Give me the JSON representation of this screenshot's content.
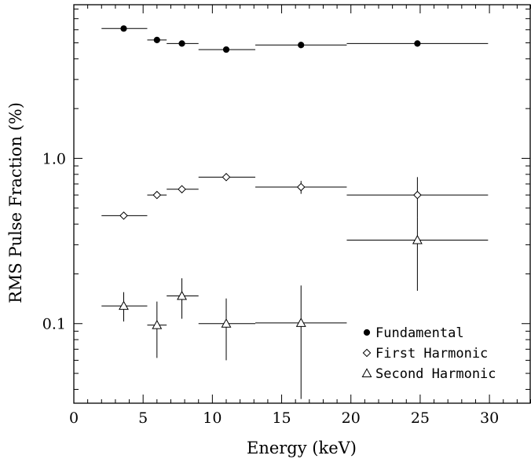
{
  "chart_data": {
    "type": "scatter",
    "title": "",
    "xlabel": "Energy (keV)",
    "ylabel": "RMS Pulse Fraction (%)",
    "xlim": [
      0,
      33
    ],
    "ylim": [
      0.033,
      8.5
    ],
    "yscale": "log",
    "xticks": [
      0,
      5,
      10,
      15,
      20,
      25,
      30
    ],
    "xtick_labels": [
      "0",
      "5",
      "10",
      "15",
      "20",
      "25",
      "30"
    ],
    "yticks": [
      0.1,
      1.0
    ],
    "ytick_labels": [
      "0.1",
      "1.0"
    ],
    "legend_position": "bottom-right",
    "series": [
      {
        "name": "Fundamental",
        "marker": "filled-circle",
        "points": [
          {
            "x": 3.6,
            "xlo": 2.0,
            "xhi": 5.3,
            "y": 6.1,
            "ylo": 6.1,
            "yhi": 6.1
          },
          {
            "x": 6.0,
            "xlo": 5.3,
            "xhi": 6.7,
            "y": 5.2,
            "ylo": 5.2,
            "yhi": 5.2
          },
          {
            "x": 7.8,
            "xlo": 6.7,
            "xhi": 9.0,
            "y": 4.95,
            "ylo": 4.95,
            "yhi": 4.95
          },
          {
            "x": 11.0,
            "xlo": 9.0,
            "xhi": 13.1,
            "y": 4.55,
            "ylo": 4.55,
            "yhi": 4.55
          },
          {
            "x": 16.4,
            "xlo": 13.1,
            "xhi": 19.7,
            "y": 4.85,
            "ylo": 4.85,
            "yhi": 4.85
          },
          {
            "x": 24.8,
            "xlo": 19.7,
            "xhi": 29.9,
            "y": 4.95,
            "ylo": 4.95,
            "yhi": 4.95
          }
        ]
      },
      {
        "name": "First Harmonic",
        "marker": "open-diamond",
        "points": [
          {
            "x": 3.6,
            "xlo": 2.0,
            "xhi": 5.3,
            "y": 0.45,
            "ylo": 0.44,
            "yhi": 0.46
          },
          {
            "x": 6.0,
            "xlo": 5.3,
            "xhi": 6.7,
            "y": 0.6,
            "ylo": 0.58,
            "yhi": 0.62
          },
          {
            "x": 7.8,
            "xlo": 6.7,
            "xhi": 9.0,
            "y": 0.65,
            "ylo": 0.63,
            "yhi": 0.67
          },
          {
            "x": 11.0,
            "xlo": 9.0,
            "xhi": 13.1,
            "y": 0.77,
            "ylo": 0.75,
            "yhi": 0.79
          },
          {
            "x": 16.4,
            "xlo": 13.1,
            "xhi": 19.7,
            "y": 0.67,
            "ylo": 0.61,
            "yhi": 0.73
          },
          {
            "x": 24.8,
            "xlo": 19.7,
            "xhi": 29.9,
            "y": 0.6,
            "ylo": 0.44,
            "yhi": 0.77
          }
        ]
      },
      {
        "name": "Second Harmonic",
        "marker": "open-triangle",
        "points": [
          {
            "x": 3.6,
            "xlo": 2.0,
            "xhi": 5.3,
            "y": 0.128,
            "ylo": 0.103,
            "yhi": 0.155
          },
          {
            "x": 6.0,
            "xlo": 5.3,
            "xhi": 6.7,
            "y": 0.098,
            "ylo": 0.062,
            "yhi": 0.136
          },
          {
            "x": 7.8,
            "xlo": 6.7,
            "xhi": 9.0,
            "y": 0.147,
            "ylo": 0.107,
            "yhi": 0.188
          },
          {
            "x": 11.0,
            "xlo": 9.0,
            "xhi": 13.1,
            "y": 0.1,
            "ylo": 0.06,
            "yhi": 0.142
          },
          {
            "x": 16.4,
            "xlo": 13.1,
            "xhi": 19.7,
            "y": 0.101,
            "ylo": 0.035,
            "yhi": 0.17
          },
          {
            "x": 24.8,
            "xlo": 19.7,
            "xhi": 29.9,
            "y": 0.32,
            "ylo": 0.158,
            "yhi": 0.44
          }
        ]
      }
    ]
  }
}
